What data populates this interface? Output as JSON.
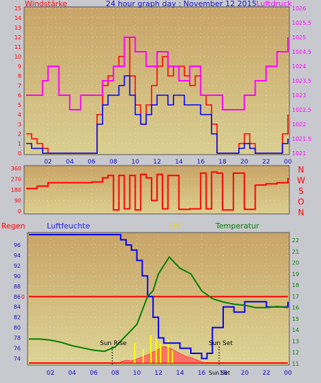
{
  "chart_data": [
    {
      "type": "line",
      "title": "24 hour graph day : November 12 2015",
      "left_axis_label": "Windstärke",
      "right_axis_label": "Luftdruck",
      "left_ylim": [
        0,
        15
      ],
      "left_ticks": [
        "0",
        "1",
        "2",
        "3",
        "4",
        "5",
        "6",
        "7",
        "8",
        "9",
        "10",
        "11",
        "12",
        "13",
        "14",
        "15"
      ],
      "right_ylim": [
        1021,
        1026
      ],
      "right_ticks": [
        "1021",
        "1021.5",
        "1022",
        "1022.5",
        "1023",
        "1023.5",
        "1024",
        "1024.5",
        "1025",
        "1025.5",
        "1026"
      ],
      "x_ticks": [
        "02",
        "04",
        "06",
        "08",
        "10",
        "12",
        "14",
        "16",
        "18",
        "20",
        "22",
        "00"
      ],
      "series": [
        {
          "color": "#ff0000",
          "hours": [
            0,
            0.5,
            1,
            1.5,
            2,
            2.5,
            3,
            5,
            6,
            6.5,
            7,
            7.5,
            8,
            8.5,
            9,
            9.5,
            10,
            10.5,
            11,
            11.5,
            12,
            12.5,
            13,
            13.5,
            14,
            14.5,
            15,
            15.5,
            16,
            16.5,
            17,
            17.5,
            18,
            19,
            19.5,
            20,
            20.5,
            21,
            22,
            23,
            23.5,
            24
          ],
          "values": [
            2,
            1.5,
            1,
            0.5,
            0,
            0,
            0,
            0,
            0,
            4,
            7,
            8,
            9,
            10,
            12,
            8,
            5,
            3,
            5,
            7,
            9,
            10,
            8,
            9,
            9,
            8,
            7,
            8,
            6,
            5,
            3,
            0,
            0,
            0,
            1,
            2,
            1,
            0,
            0,
            0,
            2,
            4
          ]
        },
        {
          "color": "#0000ff",
          "hours": [
            0,
            0.5,
            1,
            1.5,
            2,
            2.5,
            3,
            5,
            6,
            6.5,
            7,
            7.5,
            8,
            8.5,
            9,
            9.5,
            10,
            10.5,
            11,
            11.5,
            12,
            12.5,
            13,
            13.5,
            14,
            14.5,
            15,
            15.5,
            16,
            16.5,
            17,
            17.5,
            18,
            19,
            19.5,
            20,
            20.5,
            21,
            22,
            23,
            23.5,
            24
          ],
          "values": [
            1,
            0.5,
            0.5,
            0,
            0,
            0,
            0,
            0,
            0,
            3,
            5,
            6,
            6,
            7,
            8,
            6,
            4,
            3,
            4,
            5,
            6,
            6,
            5,
            6,
            6,
            5,
            5,
            5,
            4,
            4,
            2,
            0,
            0,
            0,
            0.5,
            1,
            0.5,
            0,
            0,
            0,
            1,
            1.5
          ]
        },
        {
          "color": "#ff00ff",
          "hours": [
            0,
            1,
            1.5,
            2,
            3,
            4,
            5,
            6,
            7,
            8,
            9,
            10,
            11,
            12,
            13,
            14,
            15,
            16,
            17,
            18,
            19,
            20,
            21,
            22,
            23,
            24
          ],
          "values": [
            1023,
            1023,
            1023.5,
            1024,
            1023,
            1022.5,
            1023,
            1023,
            1023.5,
            1024,
            1025,
            1024.5,
            1024,
            1024.5,
            1024,
            1023.5,
            1024,
            1023,
            1023,
            1022.5,
            1022.5,
            1023,
            1023.5,
            1024,
            1024.5,
            1025
          ]
        }
      ]
    },
    {
      "type": "line",
      "direction_labels": [
        "N",
        "W",
        "S",
        "O",
        "N"
      ],
      "left_ticks": [
        "360",
        "270",
        "180",
        "90",
        "0"
      ],
      "ylim": [
        0,
        360
      ],
      "series": [
        {
          "color": "#ff0000",
          "hours": [
            0,
            1,
            2,
            3,
            4,
            5,
            6,
            7,
            7.5,
            8,
            8.5,
            9,
            9.5,
            10,
            10.5,
            11,
            11.5,
            12,
            12.5,
            13,
            14,
            15,
            16,
            16.5,
            17,
            17.5,
            18,
            19,
            20,
            21,
            22,
            23,
            24
          ],
          "values": [
            190,
            210,
            240,
            240,
            240,
            240,
            245,
            280,
            300,
            10,
            300,
            20,
            300,
            10,
            310,
            280,
            90,
            310,
            20,
            300,
            15,
            20,
            320,
            20,
            330,
            320,
            10,
            320,
            15,
            220,
            230,
            240,
            280
          ]
        }
      ]
    },
    {
      "type": "line",
      "legend": [
        "Regen",
        "Luftfeuchte",
        "UV",
        "Temperatur"
      ],
      "humidity_ticks": [
        "74",
        "76",
        "78",
        "80",
        "82",
        "84",
        "86",
        "88",
        "90",
        "92",
        "94",
        "96"
      ],
      "humidity_ylim": [
        73,
        98
      ],
      "temp_ticks": [
        "11",
        "12",
        "13",
        "14",
        "15",
        "16",
        "17",
        "18",
        "19",
        "20",
        "21",
        "22"
      ],
      "temp_ylim": [
        11,
        22.5
      ],
      "rain_tick": "0",
      "x_ticks": [
        "02",
        "04",
        "06",
        "08",
        "10",
        "12",
        "14",
        "16",
        "18",
        "20",
        "22",
        "00"
      ],
      "annotations": [
        "Sun Rise",
        "Sun Set",
        "Sun Set"
      ],
      "series": [
        {
          "name": "Luftfeuchte",
          "color": "#0000ff",
          "hours": [
            0,
            1,
            2,
            3,
            4,
            5,
            6,
            7,
            8,
            8.5,
            9,
            9.5,
            10,
            10.5,
            11,
            11.5,
            12,
            12.5,
            13,
            14,
            15,
            16,
            16.5,
            17,
            18,
            19,
            20,
            21,
            22,
            23,
            24
          ],
          "values": [
            98,
            98,
            98,
            98,
            98,
            98,
            98,
            98,
            98,
            97,
            96,
            95,
            93,
            90,
            86,
            82,
            78,
            77,
            77,
            76,
            75,
            74,
            75,
            80,
            84,
            83,
            85,
            85,
            84,
            84,
            85
          ]
        },
        {
          "name": "Temperatur",
          "color": "#008000",
          "hours": [
            0,
            1,
            2,
            3,
            4,
            5,
            6,
            7,
            8,
            9,
            10,
            11,
            11.5,
            12,
            13,
            14,
            15,
            16,
            17,
            18,
            19,
            20,
            21,
            22,
            23,
            24
          ],
          "values": [
            13.2,
            13.2,
            13.1,
            12.9,
            12.6,
            12.4,
            12.2,
            12.1,
            12.5,
            13.5,
            14.5,
            17,
            17.5,
            19,
            20.5,
            19.5,
            19,
            17.5,
            16.8,
            16.5,
            16.3,
            16.2,
            16,
            16,
            16.1,
            16
          ]
        }
      ]
    }
  ],
  "annotations": {
    "sun_rise": "Sun Rise",
    "sun_set": "Sun Set",
    "sun_set2": "Sun Set"
  }
}
